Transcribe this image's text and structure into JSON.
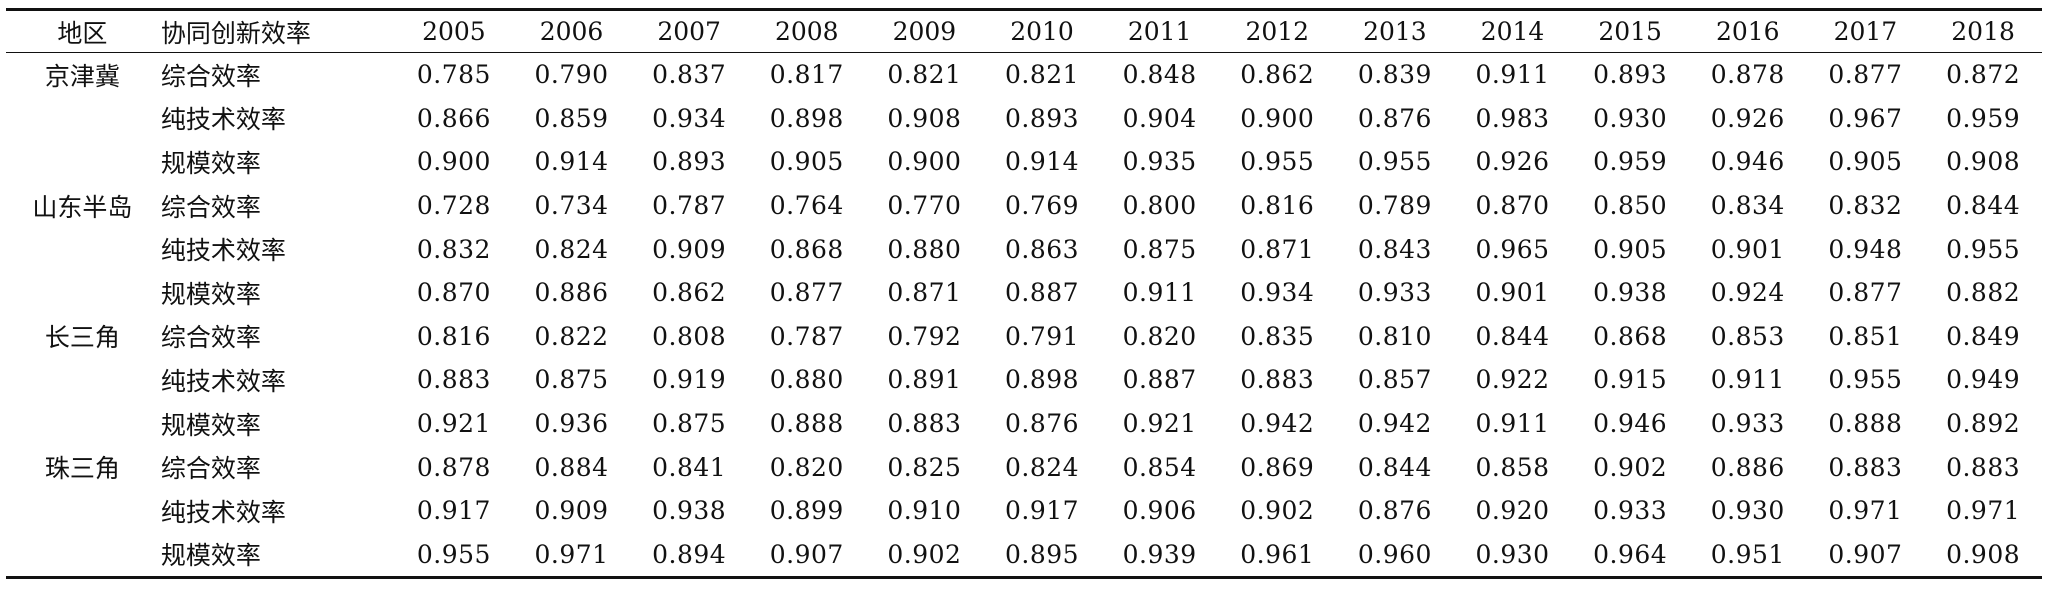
{
  "table": {
    "header": {
      "region_label": "地区",
      "indicator_label": "协同创新效率",
      "years": [
        "2005",
        "2006",
        "2007",
        "2008",
        "2009",
        "2010",
        "2011",
        "2012",
        "2013",
        "2014",
        "2015",
        "2016",
        "2017",
        "2018"
      ]
    },
    "groups": [
      {
        "region": "京津冀",
        "rows": [
          {
            "indicator": "综合效率",
            "values": [
              "0.785",
              "0.790",
              "0.837",
              "0.817",
              "0.821",
              "0.821",
              "0.848",
              "0.862",
              "0.839",
              "0.911",
              "0.893",
              "0.878",
              "0.877",
              "0.872"
            ]
          },
          {
            "indicator": "纯技术效率",
            "values": [
              "0.866",
              "0.859",
              "0.934",
              "0.898",
              "0.908",
              "0.893",
              "0.904",
              "0.900",
              "0.876",
              "0.983",
              "0.930",
              "0.926",
              "0.967",
              "0.959"
            ]
          },
          {
            "indicator": "规模效率",
            "values": [
              "0.900",
              "0.914",
              "0.893",
              "0.905",
              "0.900",
              "0.914",
              "0.935",
              "0.955",
              "0.955",
              "0.926",
              "0.959",
              "0.946",
              "0.905",
              "0.908"
            ]
          }
        ]
      },
      {
        "region": "山东半岛",
        "rows": [
          {
            "indicator": "综合效率",
            "values": [
              "0.728",
              "0.734",
              "0.787",
              "0.764",
              "0.770",
              "0.769",
              "0.800",
              "0.816",
              "0.789",
              "0.870",
              "0.850",
              "0.834",
              "0.832",
              "0.844"
            ]
          },
          {
            "indicator": "纯技术效率",
            "values": [
              "0.832",
              "0.824",
              "0.909",
              "0.868",
              "0.880",
              "0.863",
              "0.875",
              "0.871",
              "0.843",
              "0.965",
              "0.905",
              "0.901",
              "0.948",
              "0.955"
            ]
          },
          {
            "indicator": "规模效率",
            "values": [
              "0.870",
              "0.886",
              "0.862",
              "0.877",
              "0.871",
              "0.887",
              "0.911",
              "0.934",
              "0.933",
              "0.901",
              "0.938",
              "0.924",
              "0.877",
              "0.882"
            ]
          }
        ]
      },
      {
        "region": "长三角",
        "rows": [
          {
            "indicator": "综合效率",
            "values": [
              "0.816",
              "0.822",
              "0.808",
              "0.787",
              "0.792",
              "0.791",
              "0.820",
              "0.835",
              "0.810",
              "0.844",
              "0.868",
              "0.853",
              "0.851",
              "0.849"
            ]
          },
          {
            "indicator": "纯技术效率",
            "values": [
              "0.883",
              "0.875",
              "0.919",
              "0.880",
              "0.891",
              "0.898",
              "0.887",
              "0.883",
              "0.857",
              "0.922",
              "0.915",
              "0.911",
              "0.955",
              "0.949"
            ]
          },
          {
            "indicator": "规模效率",
            "values": [
              "0.921",
              "0.936",
              "0.875",
              "0.888",
              "0.883",
              "0.876",
              "0.921",
              "0.942",
              "0.942",
              "0.911",
              "0.946",
              "0.933",
              "0.888",
              "0.892"
            ]
          }
        ]
      },
      {
        "region": "珠三角",
        "rows": [
          {
            "indicator": "综合效率",
            "values": [
              "0.878",
              "0.884",
              "0.841",
              "0.820",
              "0.825",
              "0.824",
              "0.854",
              "0.869",
              "0.844",
              "0.858",
              "0.902",
              "0.886",
              "0.883",
              "0.883"
            ]
          },
          {
            "indicator": "纯技术效率",
            "values": [
              "0.917",
              "0.909",
              "0.938",
              "0.899",
              "0.910",
              "0.917",
              "0.906",
              "0.902",
              "0.876",
              "0.920",
              "0.933",
              "0.930",
              "0.971",
              "0.971"
            ]
          },
          {
            "indicator": "规模效率",
            "values": [
              "0.955",
              "0.971",
              "0.894",
              "0.907",
              "0.902",
              "0.895",
              "0.939",
              "0.961",
              "0.960",
              "0.930",
              "0.964",
              "0.951",
              "0.907",
              "0.908"
            ]
          }
        ]
      }
    ]
  }
}
